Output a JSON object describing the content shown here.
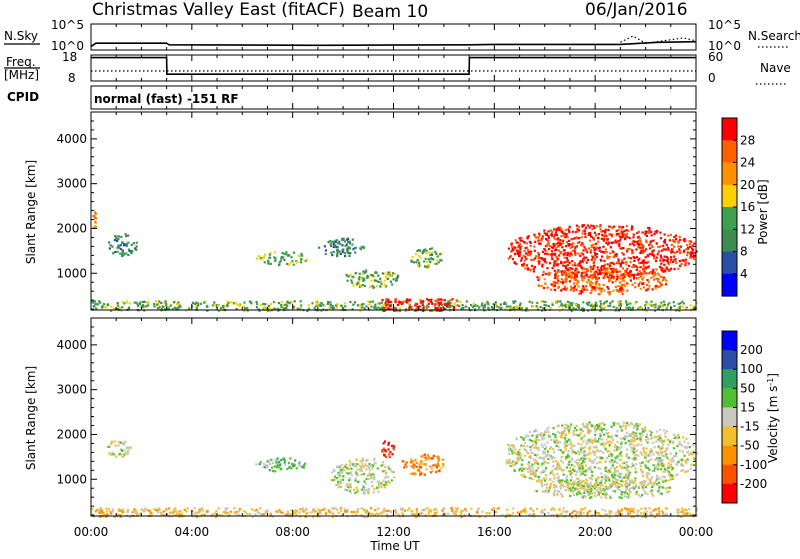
{
  "header": {
    "title": "Christmas Valley East (fitACF)",
    "beam": "Beam 10",
    "date": "06/Jan/2016"
  },
  "strip_labels": {
    "nsky": "N.Sky",
    "nsearch": "N.Search",
    "freq_line1": "Freq.",
    "freq_line2": "[MHz]",
    "nave": "Nave",
    "cpid": "CPID",
    "cpid_value": "normal (fast) -151 RF",
    "nsky_ticks": [
      "10^5",
      "10^0"
    ],
    "nsearch_ticks": [
      "10^5",
      "10^0"
    ],
    "freq_ticks": [
      "18",
      "8"
    ],
    "nave_ticks": [
      "60",
      "0"
    ]
  },
  "colors": {
    "power_scale": [
      "#0000ff",
      "#2a4ea8",
      "#3c8c50",
      "#3ca050",
      "#ffd000",
      "#ff9000",
      "#ff6000",
      "#ff0000"
    ],
    "velocity_scale": [
      "#ff0000",
      "#ff5000",
      "#ff9000",
      "#f0c030",
      "#c8c8c0",
      "#50c030",
      "#30a060",
      "#2a4ea8",
      "#0000ff"
    ],
    "grey": "#c8c8c0"
  },
  "chart_data": [
    {
      "type": "line",
      "panel": "N.Sky / N.Search",
      "x_unit": "hour UT",
      "y_scale": "log",
      "series": [
        {
          "name": "N.Sky",
          "style": "solid",
          "x": [
            0,
            0.2,
            0.3,
            3.0,
            3.1,
            9.0,
            15.0,
            16.0,
            21.0,
            22.5,
            24.0
          ],
          "y": [
            5,
            20,
            20,
            20,
            10,
            8,
            10,
            12,
            12,
            30,
            40
          ]
        },
        {
          "name": "N.Search",
          "style": "dotted",
          "x": [
            21.0,
            21.5,
            22.0,
            23.5,
            24.0
          ],
          "y": [
            30,
            500,
            20,
            200,
            60
          ]
        }
      ],
      "xlim": [
        0,
        24
      ]
    },
    {
      "type": "line",
      "panel": "Freq. / Nave",
      "x_unit": "hour UT",
      "series": [
        {
          "name": "Freq.",
          "units": "MHz",
          "style": "solid",
          "x": [
            0,
            3.0,
            3.01,
            15.0,
            15.01,
            24.0
          ],
          "y": [
            17.0,
            17.0,
            10.6,
            10.6,
            17.0,
            17.0
          ]
        },
        {
          "name": "Nave",
          "style": "dotted",
          "x": [
            0,
            24.0
          ],
          "y": [
            23,
            23
          ]
        }
      ],
      "ylim_freq": [
        8,
        18
      ],
      "ylim_nave": [
        0,
        60
      ],
      "xlim": [
        0,
        24
      ]
    },
    {
      "type": "heatmap",
      "panel": "power",
      "ylabel": "Slant Range [km]",
      "xlim": [
        0,
        24
      ],
      "ylim": [
        180,
        4600
      ],
      "yticks": [
        "1000",
        "2000",
        "3000",
        "4000"
      ],
      "colorbar_title": "Power [dB]",
      "colorbar_ticks": [
        "28",
        "24",
        "20",
        "16",
        "12",
        "8",
        "4"
      ],
      "features": [
        {
          "t0": 0,
          "t1": 24,
          "r0": 180,
          "r1": 400,
          "level": 3
        },
        {
          "t0": 11.5,
          "t1": 14.5,
          "r0": 180,
          "r1": 450,
          "level": 7
        },
        {
          "t0": 0,
          "t1": 0.2,
          "r0": 2000,
          "r1": 2400,
          "level": 5
        },
        {
          "t0": 0.6,
          "t1": 1.8,
          "r0": 1400,
          "r1": 1900,
          "level": 2
        },
        {
          "t0": 6.5,
          "t1": 8.6,
          "r0": 1200,
          "r1": 1500,
          "level": 3
        },
        {
          "t0": 9.0,
          "t1": 10.8,
          "r0": 1400,
          "r1": 1800,
          "level": 2
        },
        {
          "t0": 10.0,
          "t1": 12.2,
          "r0": 700,
          "r1": 1100,
          "level": 3
        },
        {
          "t0": 12.6,
          "t1": 13.9,
          "r0": 1150,
          "r1": 1600,
          "level": 3
        },
        {
          "t0": 16.5,
          "t1": 24.0,
          "r0": 900,
          "r1": 2100,
          "level": 7
        },
        {
          "t0": 17.6,
          "t1": 22.8,
          "r0": 550,
          "r1": 1150,
          "level": 6
        }
      ]
    },
    {
      "type": "heatmap",
      "panel": "velocity",
      "ylabel": "Slant Range [km]",
      "xlabel": "Time UT",
      "xlim": [
        0,
        24
      ],
      "ylim": [
        180,
        4600
      ],
      "xticks": [
        "00:00",
        "04:00",
        "08:00",
        "12:00",
        "16:00",
        "20:00",
        "00:00"
      ],
      "yticks": [
        "1000",
        "2000",
        "3000",
        "4000"
      ],
      "colorbar_title": "Velocity [m s-1]",
      "colorbar_ticks": [
        "200",
        "100",
        "50",
        "15",
        "-15",
        "-50",
        "-100",
        "-200"
      ],
      "features": [
        {
          "t0": 0,
          "t1": 24,
          "r0": 180,
          "r1": 380,
          "level": 3
        },
        {
          "t0": 0.6,
          "t1": 1.6,
          "r0": 1500,
          "r1": 1900,
          "level": 4
        },
        {
          "t0": 6.5,
          "t1": 8.5,
          "r0": 1200,
          "r1": 1500,
          "level": 5
        },
        {
          "t0": 9.5,
          "t1": 12.0,
          "r0": 700,
          "r1": 1500,
          "level": 4
        },
        {
          "t0": 11.5,
          "t1": 12.0,
          "r0": 1500,
          "r1": 1900,
          "level": 0
        },
        {
          "t0": 12.3,
          "t1": 14.0,
          "r0": 1100,
          "r1": 1600,
          "level": 2
        },
        {
          "t0": 16.4,
          "t1": 24.0,
          "r0": 800,
          "r1": 2300,
          "level": 4
        },
        {
          "t0": 17.5,
          "t1": 23.0,
          "r0": 600,
          "r1": 1000,
          "level": 4
        }
      ]
    }
  ]
}
